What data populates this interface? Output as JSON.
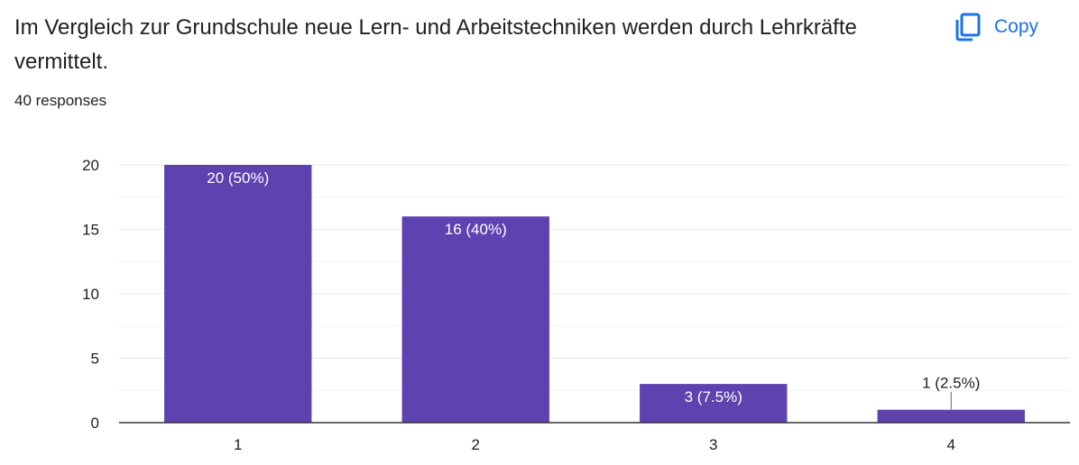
{
  "question": {
    "title": "Im Vergleich zur Grundschule neue Lern- und Arbeitstechniken werden durch Lehrkräfte vermittelt.",
    "responses": "40 responses"
  },
  "toolbar": {
    "copy_label": "Copy",
    "copy_icon": "copy-icon"
  },
  "colors": {
    "bar": "#5e43b0",
    "accent": "#1a73e8",
    "grid": "#e8e8e8",
    "axis": "#333333"
  },
  "chart_data": {
    "type": "bar",
    "categories": [
      "1",
      "2",
      "3",
      "4"
    ],
    "values": [
      20,
      16,
      3,
      1
    ],
    "data_labels": [
      "20 (50%)",
      "16 (40%)",
      "3 (7.5%)",
      "1 (2.5%)"
    ],
    "y_ticks": [
      "0",
      "5",
      "10",
      "15",
      "20"
    ],
    "ylim": [
      0,
      20
    ],
    "grid": true,
    "legend": "none"
  }
}
